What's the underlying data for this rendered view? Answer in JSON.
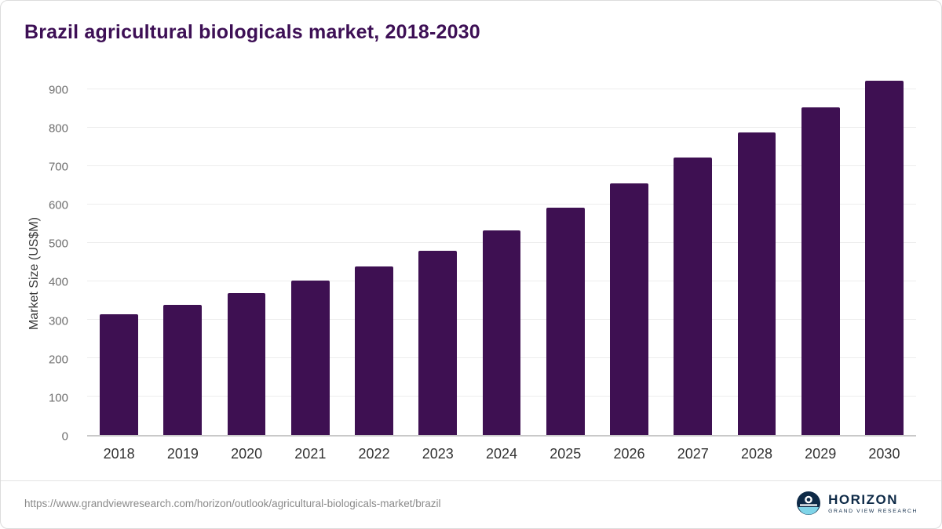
{
  "title": "Brazil agricultural biologicals market, 2018-2030",
  "chart_data": {
    "type": "bar",
    "title": "Brazil agricultural biologicals market, 2018-2030",
    "categories": [
      "2018",
      "2019",
      "2020",
      "2021",
      "2022",
      "2023",
      "2024",
      "2025",
      "2026",
      "2027",
      "2028",
      "2029",
      "2030"
    ],
    "values": [
      315,
      340,
      369,
      402,
      439,
      480,
      533,
      593,
      655,
      724,
      789,
      855,
      923
    ],
    "xlabel": "",
    "ylabel": "Market Size (US$M)",
    "ylim": [
      0,
      950
    ],
    "yticks": [
      0,
      100,
      200,
      300,
      400,
      500,
      600,
      700,
      800,
      900
    ],
    "grid": true,
    "legend": "none",
    "bar_color": "#3e1052"
  },
  "footer": {
    "source_url": "https://www.grandviewresearch.com/horizon/outlook/agricultural-biologicals-market/brazil",
    "logo_title": "HORIZON",
    "logo_subtitle": "GRAND VIEW RESEARCH"
  },
  "colors": {
    "title": "#3d0f55",
    "bar": "#3e1052",
    "logo_navy": "#0e2a47",
    "logo_teal": "#7fd4e8"
  }
}
